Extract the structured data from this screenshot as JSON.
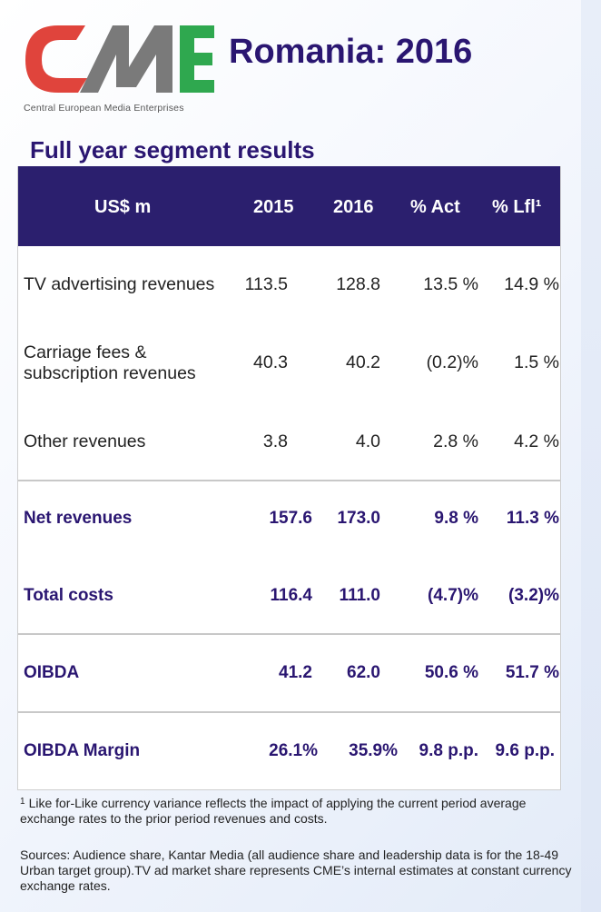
{
  "logo": {
    "letters": "CME",
    "subtitle": "Central European Media Enterprises",
    "colors": {
      "c": "#e0443c",
      "m": "#7a7a7a",
      "e": "#2fa84f"
    }
  },
  "title": "Romania: 2016",
  "section_title": "Full year segment results",
  "table": {
    "headers": [
      "US$ m",
      "2015",
      "2016",
      "% Act",
      "% Lfl¹"
    ],
    "rows": [
      {
        "label": "TV advertising revenues",
        "y2015": "113.5",
        "y2016": "128.8",
        "act": "13.5 %",
        "lfl": "14.9 %",
        "bold": false
      },
      {
        "label_line1": "Carriage fees &",
        "label_line2": "subscription revenues",
        "y2015": "40.3",
        "y2016": "40.2",
        "act": "(0.2)%",
        "lfl": "1.5 %",
        "bold": false
      },
      {
        "label": "Other revenues",
        "y2015": "3.8",
        "y2016": "4.0",
        "act": "2.8 %",
        "lfl": "4.2 %",
        "bold": false
      },
      {
        "label": "Net revenues",
        "y2015": "157.6",
        "y2016": "173.0",
        "act": "9.8 %",
        "lfl": "11.3 %",
        "bold": true
      },
      {
        "label": "Total costs",
        "y2015": "116.4",
        "y2016": "111.0",
        "act": "(4.7)%",
        "lfl": "(3.2)%",
        "bold": true
      },
      {
        "label": "OIBDA",
        "y2015": "41.2",
        "y2016": "62.0",
        "act": "50.6 %",
        "lfl": "51.7 %",
        "bold": true
      },
      {
        "label": "OIBDA Margin",
        "y2015": "26.1%",
        "y2016": "35.9%",
        "act": "9.8 p.p.",
        "lfl": "9.6 p.p.",
        "bold": true
      }
    ],
    "colors": {
      "header_bg": "#2b1f6e",
      "header_text": "#ffffff",
      "bold_text": "#2a1671"
    }
  },
  "footnote": {
    "marker": "1",
    "text": "Like for-Like currency variance reflects the impact of applying the current period average exchange rates to the prior period revenues and costs."
  },
  "sources": "Sources: Audience share, Kantar Media (all audience share and leadership data is for the 18-49 Urban target group).TV ad market share represents CME’s internal estimates at constant currency exchange rates."
}
